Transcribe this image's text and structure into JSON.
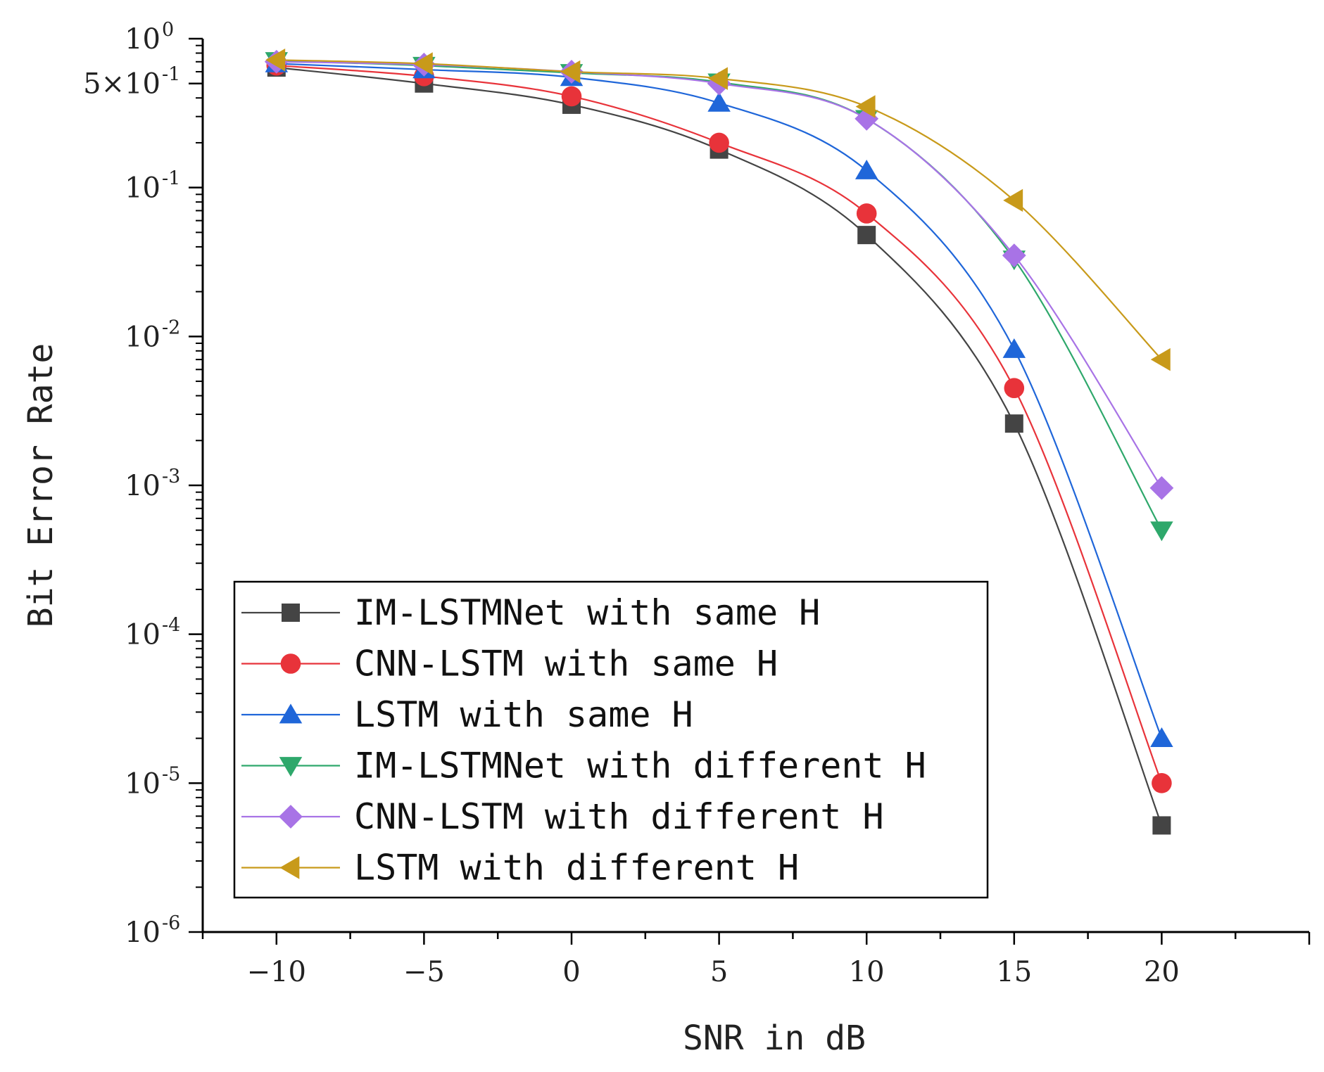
{
  "chart_data": {
    "type": "line",
    "xlabel": "SNR in dB",
    "ylabel": "Bit Error Rate",
    "y_scale": "log",
    "xlim": [
      -12.5,
      25
    ],
    "ylim": [
      1e-06,
      1
    ],
    "x_ticks": [
      -10,
      -5,
      0,
      5,
      10,
      15,
      20
    ],
    "x_tick_labels": [
      "−10",
      "−5",
      "0",
      "5",
      "10",
      "15",
      "20"
    ],
    "y_ticks": [
      {
        "value": 1,
        "base": "10",
        "exp": "0"
      },
      {
        "value": 0.5,
        "base": "5×10",
        "exp": "-1"
      },
      {
        "value": 0.1,
        "base": "10",
        "exp": "-1"
      },
      {
        "value": 0.01,
        "base": "10",
        "exp": "-2"
      },
      {
        "value": 0.001,
        "base": "10",
        "exp": "-3"
      },
      {
        "value": 0.0001,
        "base": "10",
        "exp": "-4"
      },
      {
        "value": 1e-05,
        "base": "10",
        "exp": "-5"
      },
      {
        "value": 1e-06,
        "base": "10",
        "exp": "-6"
      }
    ],
    "grid": false,
    "legend_position": "bottom-left",
    "x": [
      -10,
      -5,
      0,
      5,
      10,
      15,
      20
    ],
    "series": [
      {
        "name": "IM-LSTMNet with same H",
        "color": "#444444",
        "marker": "square",
        "values": [
          0.64,
          0.5,
          0.36,
          0.18,
          0.048,
          0.0026,
          5.2e-06
        ]
      },
      {
        "name": "CNN-LSTM with same H",
        "color": "#e8333a",
        "marker": "circle",
        "values": [
          0.66,
          0.56,
          0.41,
          0.2,
          0.067,
          0.0045,
          1e-05
        ]
      },
      {
        "name": "LSTM with same H",
        "color": "#1f66d9",
        "marker": "triangle-up",
        "values": [
          0.68,
          0.62,
          0.55,
          0.37,
          0.13,
          0.0082,
          2e-05
        ]
      },
      {
        "name": "IM-LSTMNet with different H",
        "color": "#2ea86b",
        "marker": "triangle-down",
        "values": [
          0.71,
          0.66,
          0.59,
          0.51,
          0.29,
          0.033,
          0.0005
        ]
      },
      {
        "name": "CNN-LSTM with different H",
        "color": "#a873e6",
        "marker": "diamond",
        "values": [
          0.7,
          0.67,
          0.6,
          0.5,
          0.29,
          0.035,
          0.00096
        ]
      },
      {
        "name": "LSTM with different H",
        "color": "#c89a1a",
        "marker": "triangle-left",
        "values": [
          0.72,
          0.68,
          0.6,
          0.54,
          0.35,
          0.082,
          0.007
        ]
      }
    ]
  }
}
